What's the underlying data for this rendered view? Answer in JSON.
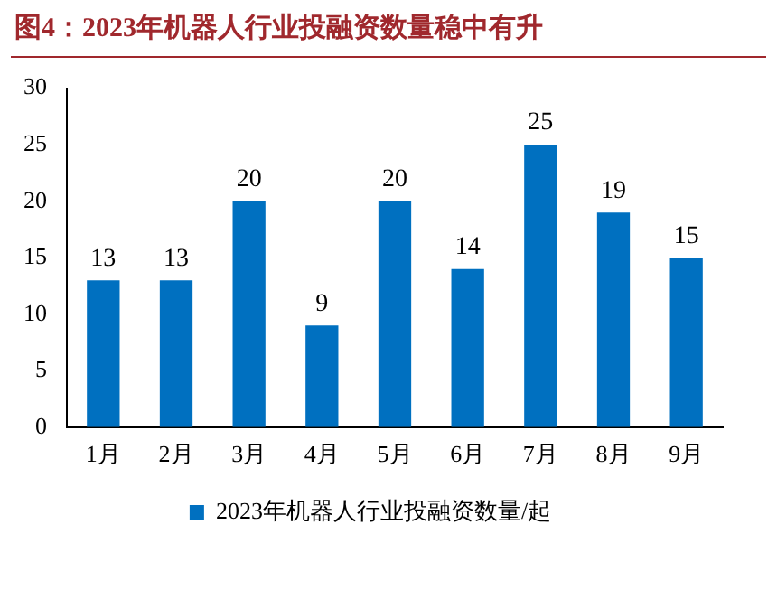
{
  "chart_data": {
    "type": "bar",
    "title": "图4：2023年机器人行业投融资数量稳中有升",
    "categories": [
      "1月",
      "2月",
      "3月",
      "4月",
      "5月",
      "6月",
      "7月",
      "8月",
      "9月"
    ],
    "series": [
      {
        "name": "2023年机器人行业投融资数量/起",
        "color": "#0070c0",
        "values": [
          13,
          13,
          20,
          9,
          20,
          14,
          25,
          19,
          15
        ]
      }
    ],
    "ylim": [
      0,
      30
    ],
    "yticks": [
      0,
      5,
      10,
      15,
      20,
      25,
      30
    ],
    "grid": false,
    "legend": "bottom",
    "data_labels": true
  }
}
